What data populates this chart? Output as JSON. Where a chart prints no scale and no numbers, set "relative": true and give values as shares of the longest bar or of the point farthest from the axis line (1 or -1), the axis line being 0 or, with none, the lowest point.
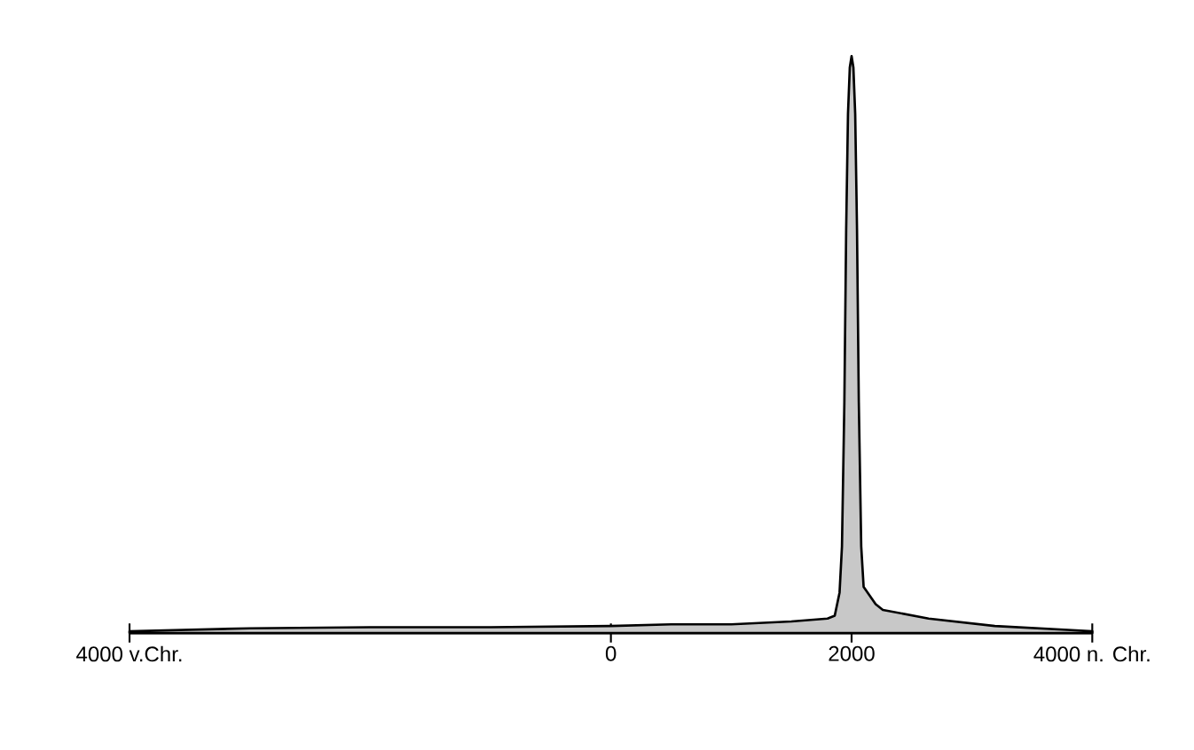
{
  "chart_data": {
    "type": "area",
    "relative": true,
    "color": "#c8c8c8",
    "x": [
      -4000,
      -3000,
      -2000,
      -1000,
      0,
      500,
      1000,
      1500,
      1800,
      1860,
      1900,
      1920,
      1940,
      1955,
      1970,
      1985,
      2000,
      2015,
      2030,
      2045,
      2060,
      2080,
      2100,
      2200,
      2260,
      2640,
      3190,
      4000
    ],
    "values": [
      0.003,
      0.008,
      0.01,
      0.01,
      0.012,
      0.015,
      0.015,
      0.02,
      0.025,
      0.03,
      0.07,
      0.15,
      0.4,
      0.7,
      0.9,
      0.98,
      1,
      0.98,
      0.9,
      0.7,
      0.4,
      0.15,
      0.08,
      0.05,
      0.04,
      0.025,
      0.012,
      0.003
    ],
    "xlim": [
      -4000,
      4000
    ],
    "xticks": [
      {
        "value": -4000,
        "label": "4000 v.Chr."
      },
      0,
      2000,
      {
        "value": 4000,
        "label": "4000 n. Chr."
      }
    ]
  }
}
